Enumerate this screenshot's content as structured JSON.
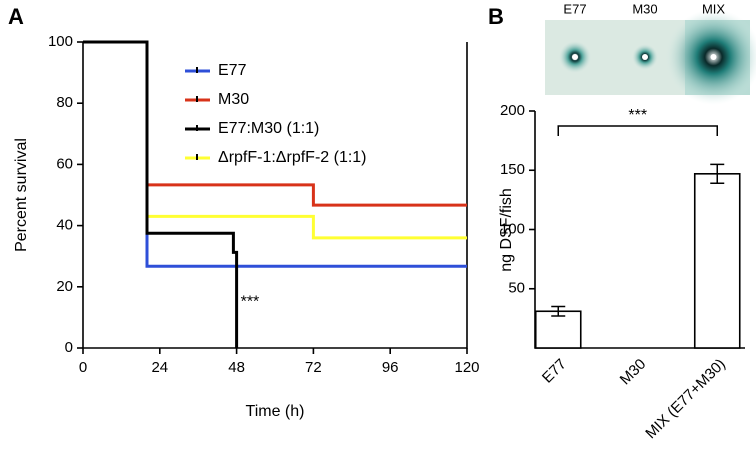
{
  "chart_data": [
    {
      "type": "step",
      "panel": "A",
      "xlabel": "Time (h)",
      "ylabel": "Percent survival",
      "xlim": [
        0,
        120
      ],
      "xticks": [
        0,
        24,
        48,
        72,
        96,
        120
      ],
      "ylim": [
        0,
        100
      ],
      "yticks": [
        0,
        20,
        40,
        60,
        80,
        100
      ],
      "series": [
        {
          "name": "ΔrpfF-1:ΔrpfF-2 (1:1)",
          "color": "#ffff33",
          "x": [
            0,
            20,
            72,
            120
          ],
          "values": [
            100,
            43,
            36,
            36
          ]
        },
        {
          "name": "E77",
          "color": "#2e4fd8",
          "x": [
            0,
            20,
            120
          ],
          "values": [
            100,
            26.7,
            26.7
          ]
        },
        {
          "name": "M30",
          "color": "#d8331a",
          "x": [
            0,
            20,
            72,
            120
          ],
          "values": [
            100,
            53.3,
            46.7,
            46.7
          ]
        },
        {
          "name": "E77:M30 (1:1)",
          "color": "#000000",
          "x": [
            0,
            20,
            47,
            48
          ],
          "values": [
            100,
            37.5,
            31.25,
            0
          ]
        }
      ],
      "legend_order": [
        1,
        2,
        3,
        0
      ],
      "annotations": [
        "***"
      ]
    },
    {
      "type": "bar",
      "panel": "B",
      "ylabel": "ng DSF/fish",
      "categories": [
        "E77",
        "M30",
        "MIX (E77+M30)"
      ],
      "values": [
        31,
        null,
        147
      ],
      "errors": [
        4,
        null,
        8
      ],
      "color": "#ffffff",
      "ylim": [
        0,
        200
      ],
      "yticks": [
        50,
        100,
        150,
        200
      ],
      "image_labels": [
        "E77",
        "M30",
        "MIX"
      ],
      "annotations": [
        "***"
      ]
    }
  ]
}
